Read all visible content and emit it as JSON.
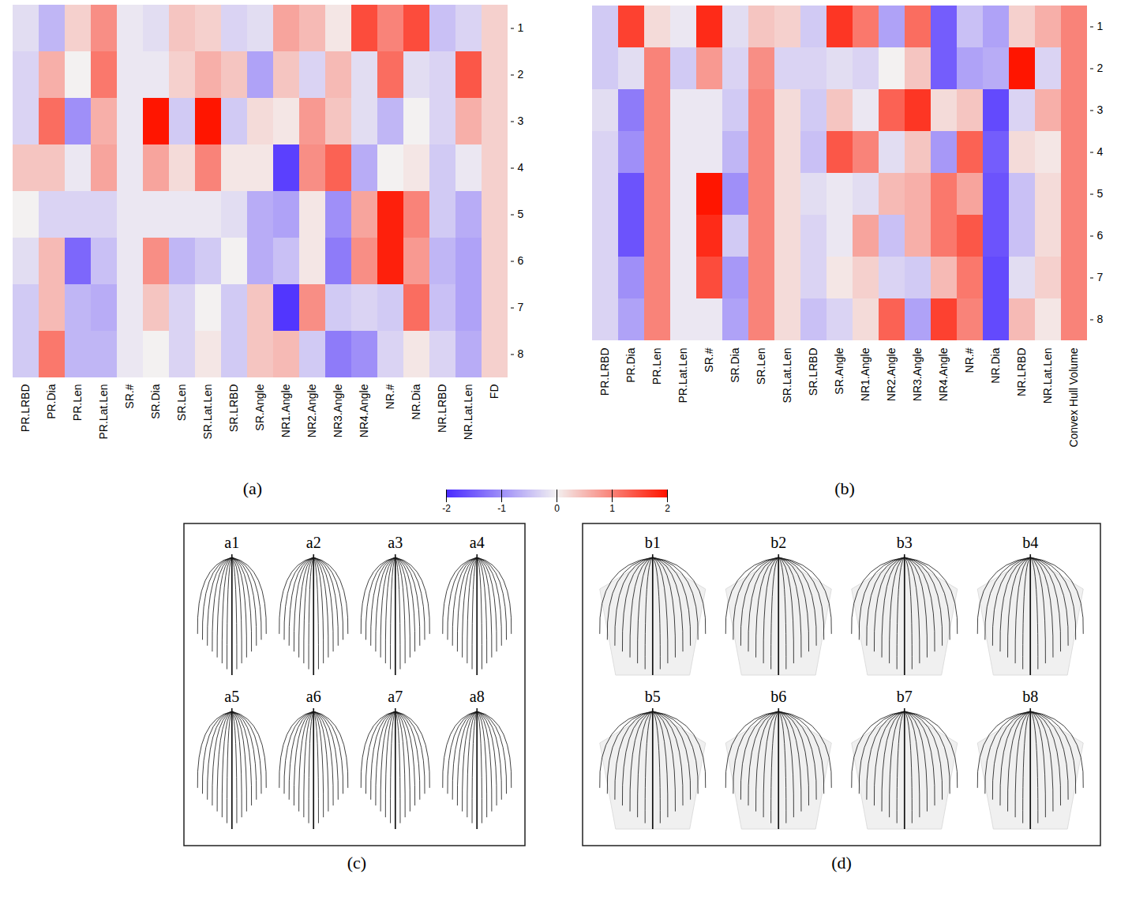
{
  "chart_data": [
    {
      "type": "heatmap",
      "label": "(a)",
      "columns": [
        "PR.LRBD",
        "PR.Dia",
        "PR.Len",
        "PR.Lat.Len",
        "SR.#",
        "SR.Dia",
        "SR.Len",
        "SR.Lat.Len",
        "SR.LRBD",
        "SR.Angle",
        "NR1.Angle",
        "NR2.Angle",
        "NR3.Angle",
        "NR4.Angle",
        "NR.#",
        "NR.Dia",
        "NR.LRBD",
        "NR.Lat.Len",
        "FD"
      ],
      "rows": [
        1,
        2,
        3,
        4,
        5,
        6,
        7,
        8
      ],
      "values": [
        [
          -0.2,
          -0.6,
          0.3,
          0.9,
          -0.1,
          -0.2,
          0.4,
          0.3,
          -0.3,
          -0.2,
          0.7,
          0.5,
          0.1,
          1.5,
          1.0,
          1.5,
          -0.5,
          -0.3,
          0.3
        ],
        [
          -0.3,
          0.6,
          0.0,
          1.1,
          -0.1,
          -0.1,
          0.3,
          0.6,
          0.4,
          -0.8,
          0.4,
          -0.3,
          0.5,
          -0.2,
          1.2,
          -0.2,
          -0.3,
          1.4,
          0.3
        ],
        [
          -0.3,
          1.2,
          -1.0,
          0.6,
          -0.1,
          2.0,
          -0.4,
          2.0,
          -0.4,
          0.2,
          0.1,
          0.8,
          0.4,
          -0.2,
          -0.6,
          0.0,
          -0.3,
          0.6,
          0.3
        ],
        [
          0.4,
          0.4,
          -0.1,
          0.7,
          -0.1,
          0.7,
          0.2,
          1.0,
          0.1,
          0.1,
          -1.8,
          0.9,
          1.3,
          -0.7,
          0.0,
          0.1,
          -0.4,
          -0.1,
          0.3
        ],
        [
          0.0,
          -0.3,
          -0.3,
          -0.3,
          -0.1,
          -0.1,
          -0.1,
          -0.1,
          -0.2,
          -0.7,
          -0.8,
          0.1,
          -1.0,
          0.7,
          1.9,
          1.0,
          -0.4,
          -0.7,
          0.3
        ],
        [
          -0.2,
          0.5,
          -1.4,
          -0.5,
          -0.1,
          0.9,
          -0.6,
          -0.4,
          0.0,
          -0.7,
          -0.5,
          0.1,
          -1.2,
          0.9,
          1.9,
          0.8,
          -0.6,
          -0.8,
          0.3
        ],
        [
          -0.4,
          0.5,
          -0.6,
          -0.7,
          -0.1,
          0.4,
          -0.3,
          0.0,
          -0.4,
          0.4,
          -1.9,
          0.9,
          -0.4,
          -0.3,
          -0.4,
          1.2,
          -0.5,
          -0.8,
          0.3
        ],
        [
          -0.4,
          1.1,
          -0.6,
          -0.6,
          -0.1,
          0.0,
          -0.3,
          0.1,
          -0.4,
          0.4,
          0.5,
          -0.4,
          -1.2,
          -1.0,
          -0.3,
          0.1,
          -0.3,
          -0.7,
          0.3
        ]
      ]
    },
    {
      "type": "heatmap",
      "label": "(b)",
      "columns": [
        "PR.LRBD",
        "PR.Dia",
        "PR.Len",
        "PR.Lat.Len",
        "SR.#",
        "SR.Dia",
        "SR.Len",
        "SR.Lat.Len",
        "SR.LRBD",
        "SR.Angle",
        "NR1.Angle",
        "NR2.Angle",
        "NR3.Angle",
        "NR4.Angle",
        "NR.#",
        "NR.Dia",
        "NR.LRBD",
        "NR.Lat.Len",
        "Convex Hull Volume"
      ],
      "rows": [
        1,
        2,
        3,
        4,
        5,
        6,
        7,
        8
      ],
      "values": [
        [
          -0.4,
          1.6,
          0.2,
          -0.1,
          1.8,
          -0.2,
          0.4,
          0.3,
          -0.4,
          1.7,
          1.1,
          -0.8,
          1.2,
          -1.5,
          -0.5,
          -0.8,
          0.3,
          0.6,
          1.0
        ],
        [
          -0.4,
          -0.2,
          1.0,
          -0.4,
          0.8,
          -0.3,
          0.9,
          -0.3,
          -0.3,
          -0.2,
          -0.3,
          0.0,
          0.4,
          -1.5,
          -0.8,
          -0.7,
          2.0,
          -0.3,
          1.0
        ],
        [
          -0.2,
          -1.2,
          1.0,
          -0.1,
          -0.1,
          -0.4,
          1.0,
          0.2,
          -0.4,
          0.4,
          -0.1,
          1.3,
          1.7,
          0.2,
          0.4,
          -1.7,
          -0.3,
          0.6,
          1.0
        ],
        [
          -0.3,
          -1.0,
          1.0,
          -0.1,
          -0.1,
          -0.6,
          1.0,
          0.2,
          -0.5,
          1.4,
          1.0,
          -0.2,
          0.4,
          -0.9,
          1.3,
          -1.5,
          0.2,
          0.1,
          1.0
        ],
        [
          -0.3,
          -1.6,
          1.0,
          -0.1,
          2.0,
          -1.0,
          1.0,
          0.2,
          -0.2,
          -0.1,
          -0.2,
          0.5,
          0.6,
          1.1,
          0.7,
          -1.6,
          -0.5,
          0.2,
          1.0
        ],
        [
          -0.3,
          -1.6,
          1.0,
          -0.1,
          1.8,
          -0.4,
          1.0,
          0.2,
          -0.3,
          -0.1,
          0.7,
          -0.5,
          0.6,
          1.1,
          1.4,
          -1.6,
          -0.5,
          0.2,
          1.0
        ],
        [
          -0.3,
          -1.0,
          1.0,
          -0.1,
          1.5,
          -0.9,
          1.0,
          0.2,
          -0.3,
          0.1,
          0.3,
          -0.3,
          -0.4,
          0.5,
          1.1,
          -1.7,
          -0.2,
          0.3,
          1.0
        ],
        [
          -0.3,
          -0.8,
          1.0,
          -0.1,
          -0.1,
          -0.8,
          1.0,
          0.2,
          -0.5,
          -0.3,
          0.2,
          1.3,
          -0.8,
          1.6,
          1.0,
          -1.7,
          0.5,
          0.1,
          1.0
        ]
      ]
    }
  ],
  "colorbar": {
    "range": [
      -2,
      2
    ],
    "ticks": [
      -2,
      -1,
      0,
      1,
      2
    ]
  },
  "image_panels": [
    {
      "label": "(c)",
      "items": [
        "a1",
        "a2",
        "a3",
        "a4",
        "a5",
        "a6",
        "a7",
        "a8"
      ]
    },
    {
      "label": "(d)",
      "items": [
        "b1",
        "b2",
        "b3",
        "b4",
        "b5",
        "b6",
        "b7",
        "b8"
      ]
    }
  ]
}
